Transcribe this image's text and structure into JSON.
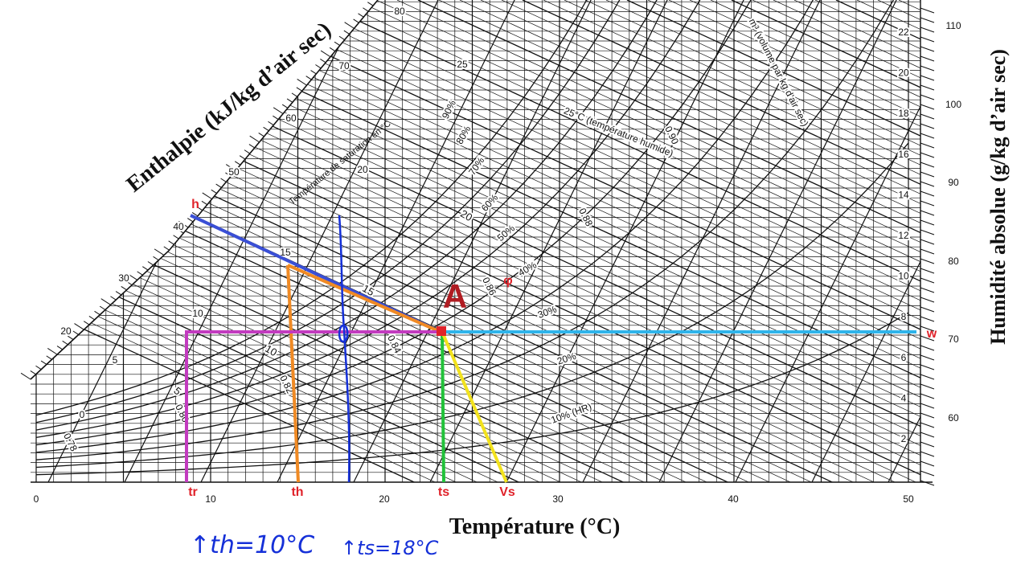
{
  "chart_data": {
    "type": "psychrometric",
    "title": "",
    "xlabel": "Température (°C)",
    "ylabel_right": "Humidité absolue (g/kg d’air sec)",
    "enthalpy_label": "Enthalpie (kJ/kg d’air sec)",
    "saturation_label": "Température de saturation en °C",
    "wetbulb_note": "25°C (température humide)",
    "volume_note": "m³ (volume par kg d’air sec)",
    "x_ticks": [
      "0",
      "10",
      "20",
      "30",
      "40",
      "50"
    ],
    "w_ticks": [
      "2",
      "4",
      "6",
      "8",
      "10",
      "12",
      "14",
      "16",
      "18",
      "20",
      "22"
    ],
    "enthalpy_ticks": [
      "0",
      "5",
      "10",
      "15",
      "20",
      "25",
      "30",
      "40",
      "50",
      "60",
      "70",
      "80"
    ],
    "enthalpy_right_ticks": [
      "60",
      "70",
      "80",
      "90",
      "100",
      "110"
    ],
    "wetbulb_ticks": [
      "0",
      "5",
      "10",
      "15",
      "20",
      "25"
    ],
    "volume_ticks": [
      "0.78",
      "0.80",
      "0.82",
      "0.84",
      "0.86",
      "0.88",
      "0.90"
    ],
    "rh_labels": [
      "10% (HR)",
      "20%",
      "30%",
      "40%",
      "50%",
      "60%",
      "70%",
      "80%",
      "90%"
    ],
    "point": {
      "name": "A",
      "temperature_c": 23,
      "humidity_g_per_kg": 8.5
    },
    "markers": {
      "h": "h",
      "tr": "tr",
      "th": "th",
      "ts": "ts",
      "vs": "Vs",
      "w": "w",
      "phi": "φ"
    },
    "annotations": {
      "th": "↑th=10°C",
      "ts": "↑ts=18°C"
    },
    "colors": {
      "grid": "#111111",
      "h_line": "#3a4fd6",
      "th_line": "#f08a24",
      "tr_line": "#c23bbf",
      "ts_line": "#22c23a",
      "vs_line": "#f2e21d",
      "w_line": "#2fb4ea",
      "handwriting": "#1530d8",
      "point": "#e0222a",
      "point_label": "#b01c22",
      "marker_text": "#e0222a"
    }
  }
}
